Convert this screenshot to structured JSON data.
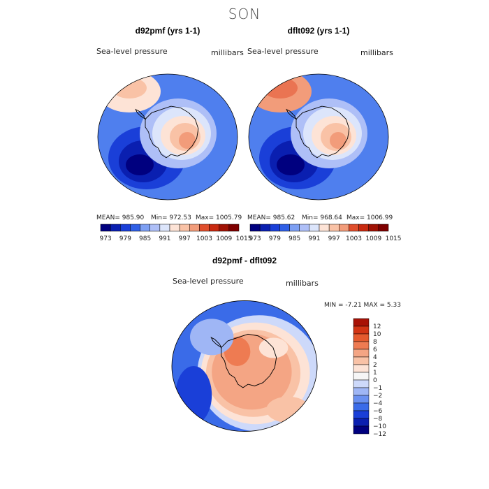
{
  "title": "SON",
  "colors": {
    "sequential": [
      "#00007f",
      "#0a1fb0",
      "#1a3fd8",
      "#2f5fe6",
      "#4f7fee",
      "#7d9ff3",
      "#aebff7",
      "#dce5fb",
      "#fde3d6",
      "#f9c2a6",
      "#f29c7a",
      "#ea7452",
      "#e04e2c",
      "#c92a10",
      "#a01204",
      "#7f0000"
    ],
    "diff": [
      "#00007f",
      "#0a1fb0",
      "#1a3fd8",
      "#3a6be8",
      "#6a90f0",
      "#9fb6f5",
      "#cdd9fa",
      "#f6f6f6",
      "#fde3d6",
      "#f9c2a6",
      "#f4a584",
      "#ee7b52",
      "#e55a2e",
      "#d23414",
      "#a81206"
    ],
    "coast": "#000000"
  },
  "chart_data": [
    {
      "type": "heatmap",
      "title": "d92pmf (yrs 1-1)",
      "variable": "Sea-level pressure",
      "units": "millibars",
      "stats": {
        "mean": "MEAN= 985.90",
        "min": "Min= 972.53",
        "max": "Max= 1005.79"
      },
      "mean": 985.9,
      "min": 972.53,
      "max": 1005.79,
      "colorbar_ticks": [
        "973",
        "979",
        "985",
        "991",
        "997",
        "1003",
        "1009",
        "1015"
      ],
      "colorbar_levels": 14
    },
    {
      "type": "heatmap",
      "title": "dflt092 (yrs 1-1)",
      "variable": "Sea-level pressure",
      "units": "millibars",
      "stats": {
        "mean": "MEAN= 985.62",
        "min": "Min= 968.64",
        "max": "Max= 1006.99"
      },
      "mean": 985.62,
      "min": 968.64,
      "max": 1006.99,
      "colorbar_ticks": [
        "973",
        "979",
        "985",
        "991",
        "997",
        "1003",
        "1009",
        "1015"
      ],
      "colorbar_levels": 14
    },
    {
      "type": "heatmap",
      "title": "d92pmf - dflt092",
      "variable": "Sea-level pressure",
      "units": "millibars",
      "stats": {
        "minmax": "MIN =  -7.21 MAX =    5.33"
      },
      "min": -7.21,
      "max": 5.33,
      "colorbar_ticks": [
        "12",
        "10",
        "8",
        "6",
        "4",
        "2",
        "1",
        "0",
        "−1",
        "−2",
        "−4",
        "−6",
        "−8",
        "−10",
        "−12"
      ]
    }
  ]
}
